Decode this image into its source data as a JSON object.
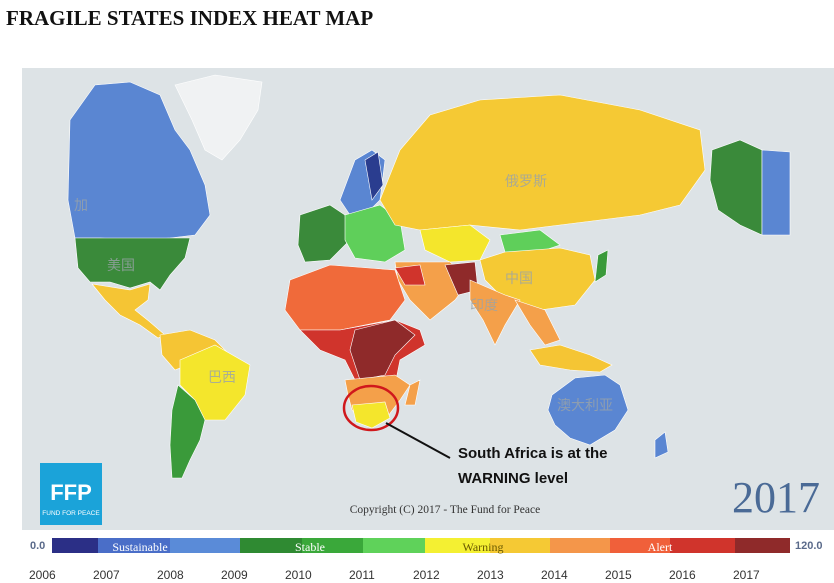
{
  "header": {
    "title": "FRAGILE STATES INDEX HEAT MAP"
  },
  "map": {
    "labels": [
      "加",
      "美国",
      "俄罗斯",
      "中国",
      "印度",
      "巴西",
      "澳大利亚"
    ],
    "annotation": [
      "South Africa is at the",
      "WARNING level"
    ],
    "copyright": "Copyright (C) 2017 - The Fund for Peace",
    "year": "2017"
  },
  "logo": {
    "mark": "FFP",
    "name": "FUND FOR PEACE"
  },
  "legend": {
    "min": "0.0",
    "max": "120.0",
    "bands": [
      "Sustainable",
      "Stable",
      "Warning",
      "Alert"
    ]
  },
  "timeline": [
    "2006",
    "2007",
    "2008",
    "2009",
    "2010",
    "2011",
    "2012",
    "2013",
    "2014",
    "2015",
    "2016",
    "2017"
  ]
}
